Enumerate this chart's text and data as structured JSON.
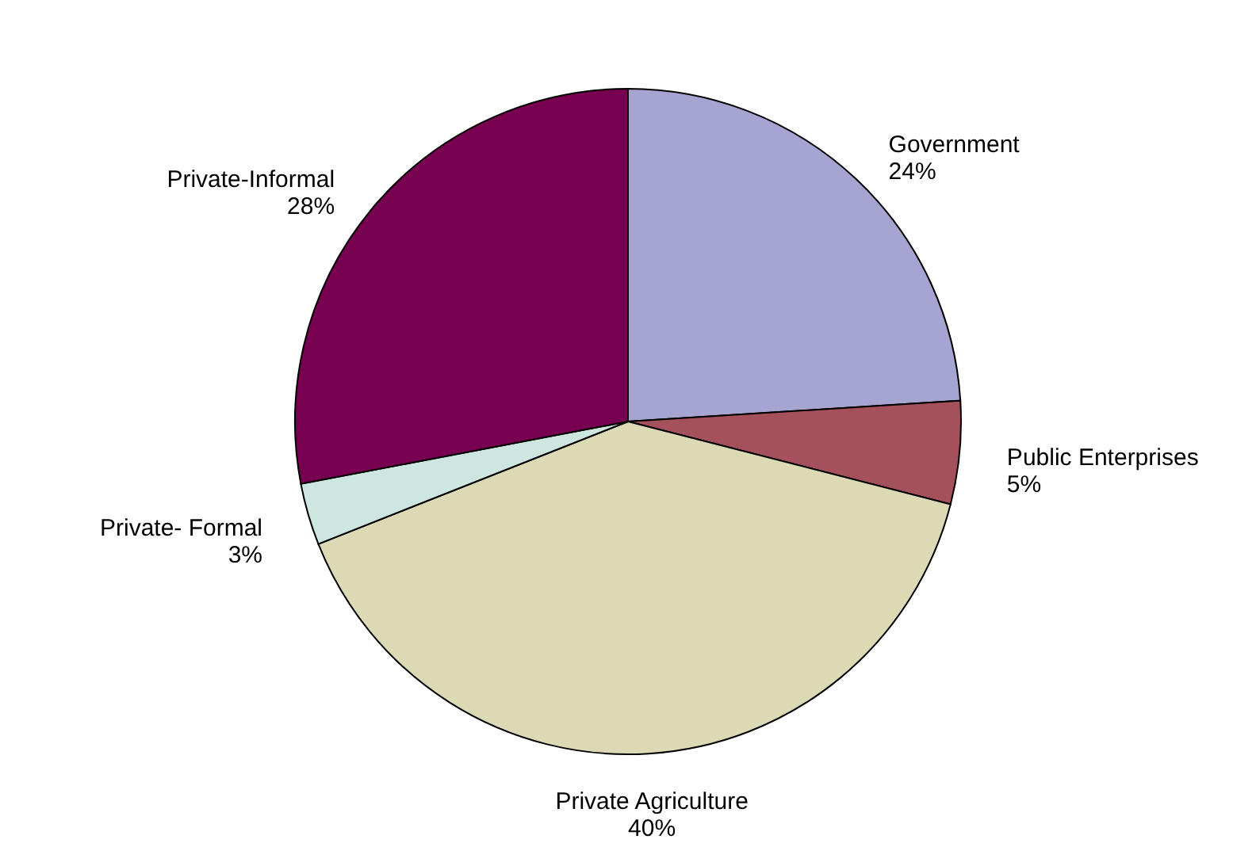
{
  "chart_data": {
    "type": "pie",
    "categories": [
      "Government",
      "Public Enterprises",
      "Private Agriculture",
      "Private- Formal",
      "Private-Informal"
    ],
    "values": [
      24,
      5,
      40,
      3,
      28
    ],
    "value_labels": [
      "24%",
      "5%",
      "40%",
      "3%",
      "28%"
    ],
    "colors": [
      "#a6a4d0",
      "#a5515c",
      "#dcd9b5",
      "#cde6e0",
      "#770050"
    ]
  }
}
